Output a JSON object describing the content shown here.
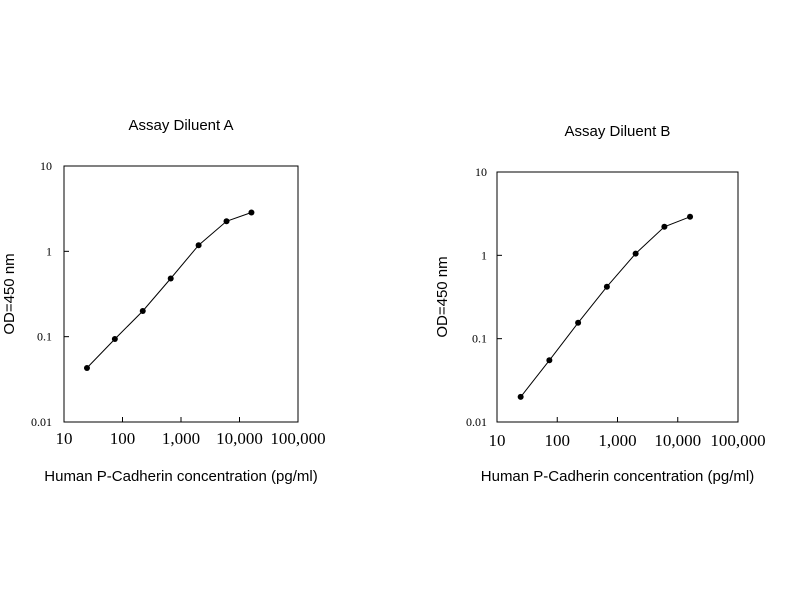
{
  "chart_data": [
    {
      "type": "line",
      "title": "Assay Diluent A",
      "xlabel": "Human P-Cadherin concentration (pg/ml)",
      "ylabel": "OD=450 nm",
      "x_scale": "log",
      "y_scale": "log",
      "xlim": [
        10,
        100000
      ],
      "ylim": [
        0.01,
        10
      ],
      "x_ticks": [
        "10",
        "100",
        "1,000",
        "10,000",
        "100,000"
      ],
      "y_ticks": [
        "0.01",
        "0.1",
        "1",
        "10"
      ],
      "grid": false,
      "series": [
        {
          "x": [
            24.7,
            74,
            222,
            667,
            2000,
            6000,
            16000
          ],
          "y": [
            0.043,
            0.094,
            0.2,
            0.48,
            1.18,
            2.25,
            2.85
          ]
        }
      ]
    },
    {
      "type": "line",
      "title": "Assay Diluent B",
      "xlabel": "Human P-Cadherin concentration (pg/ml)",
      "ylabel": "OD=450 nm",
      "x_scale": "log",
      "y_scale": "log",
      "xlim": [
        10,
        100000
      ],
      "ylim": [
        0.01,
        10
      ],
      "x_ticks": [
        "10",
        "100",
        "1,000",
        "10,000",
        "100,000"
      ],
      "y_ticks": [
        "0.01",
        "0.1",
        "1",
        "10"
      ],
      "grid": false,
      "series": [
        {
          "x": [
            24.7,
            74,
            222,
            667,
            2000,
            6000,
            16000
          ],
          "y": [
            0.02,
            0.055,
            0.155,
            0.42,
            1.05,
            2.2,
            2.9
          ]
        }
      ]
    }
  ]
}
